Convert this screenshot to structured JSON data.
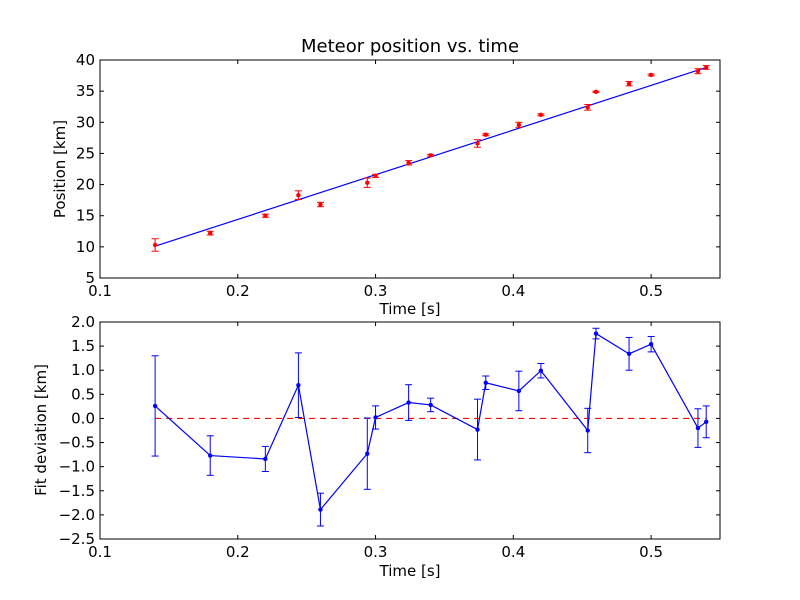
{
  "chart_data": [
    {
      "type": "scatter",
      "title": "Meteor position vs. time",
      "xlabel": "Time [s]",
      "ylabel": "Position [km]",
      "xlim": [
        0.1,
        0.55
      ],
      "ylim": [
        5,
        40
      ],
      "xticks": [
        "0.1",
        "0.2",
        "0.3",
        "0.4",
        "0.5"
      ],
      "xtick_values": [
        0.1,
        0.2,
        0.3,
        0.4,
        0.5
      ],
      "yticks": [
        "5",
        "10",
        "15",
        "20",
        "25",
        "30",
        "35",
        "40"
      ],
      "ytick_values": [
        5,
        10,
        15,
        20,
        25,
        30,
        35,
        40
      ],
      "grid": false,
      "colors": {
        "points": "#ff0000",
        "fit": "#0000ff"
      },
      "points": [
        {
          "x": 0.14,
          "y": 10.3,
          "err": 1.0
        },
        {
          "x": 0.18,
          "y": 12.2,
          "err": 0.3
        },
        {
          "x": 0.22,
          "y": 15.0,
          "err": 0.25
        },
        {
          "x": 0.244,
          "y": 18.3,
          "err": 0.7
        },
        {
          "x": 0.26,
          "y": 16.8,
          "err": 0.35
        },
        {
          "x": 0.294,
          "y": 20.3,
          "err": 0.75
        },
        {
          "x": 0.3,
          "y": 21.4,
          "err": 0.25
        },
        {
          "x": 0.324,
          "y": 23.5,
          "err": 0.35
        },
        {
          "x": 0.34,
          "y": 24.7,
          "err": 0.15
        },
        {
          "x": 0.374,
          "y": 26.6,
          "err": 0.6
        },
        {
          "x": 0.38,
          "y": 28.0,
          "err": 0.15
        },
        {
          "x": 0.404,
          "y": 29.6,
          "err": 0.4
        },
        {
          "x": 0.42,
          "y": 31.2,
          "err": 0.15
        },
        {
          "x": 0.454,
          "y": 32.4,
          "err": 0.45
        },
        {
          "x": 0.46,
          "y": 34.9,
          "err": 0.1
        },
        {
          "x": 0.484,
          "y": 36.2,
          "err": 0.35
        },
        {
          "x": 0.5,
          "y": 37.6,
          "err": 0.15
        },
        {
          "x": 0.534,
          "y": 38.2,
          "err": 0.4
        },
        {
          "x": 0.54,
          "y": 38.8,
          "err": 0.3
        }
      ],
      "fit_line": {
        "x": [
          0.14,
          0.54
        ],
        "y": [
          10.1,
          38.8
        ]
      }
    },
    {
      "type": "line",
      "xlabel": "Time [s]",
      "ylabel": "Fit deviation [km]",
      "xlim": [
        0.1,
        0.55
      ],
      "ylim": [
        -2.5,
        2.0
      ],
      "xticks": [
        "0.1",
        "0.2",
        "0.3",
        "0.4",
        "0.5"
      ],
      "xtick_values": [
        0.1,
        0.2,
        0.3,
        0.4,
        0.5
      ],
      "yticks": [
        "−2.5",
        "−2.0",
        "−1.5",
        "−1.0",
        "−0.5",
        "0.0",
        "0.5",
        "1.0",
        "1.5",
        "2.0"
      ],
      "ytick_values": [
        -2.5,
        -2.0,
        -1.5,
        -1.0,
        -0.5,
        0.0,
        0.5,
        1.0,
        1.5,
        2.0
      ],
      "grid": false,
      "colors": {
        "series": "#0000ff",
        "zero_line": "#ff0000"
      },
      "zero_line": 0.0,
      "points": [
        {
          "x": 0.14,
          "y": 0.26,
          "err": 1.04
        },
        {
          "x": 0.18,
          "y": -0.77,
          "err": 0.41
        },
        {
          "x": 0.22,
          "y": -0.84,
          "err": 0.26
        },
        {
          "x": 0.244,
          "y": 0.69,
          "err": 0.67
        },
        {
          "x": 0.26,
          "y": -1.89,
          "err": 0.34
        },
        {
          "x": 0.294,
          "y": -0.73,
          "err": 0.74
        },
        {
          "x": 0.3,
          "y": 0.02,
          "err": 0.24
        },
        {
          "x": 0.324,
          "y": 0.33,
          "err": 0.37
        },
        {
          "x": 0.34,
          "y": 0.28,
          "err": 0.14
        },
        {
          "x": 0.374,
          "y": -0.23,
          "err": 0.63
        },
        {
          "x": 0.38,
          "y": 0.74,
          "err": 0.14
        },
        {
          "x": 0.404,
          "y": 0.57,
          "err": 0.41
        },
        {
          "x": 0.42,
          "y": 0.99,
          "err": 0.15
        },
        {
          "x": 0.454,
          "y": -0.25,
          "err": 0.46
        },
        {
          "x": 0.46,
          "y": 1.76,
          "err": 0.11
        },
        {
          "x": 0.484,
          "y": 1.34,
          "err": 0.34
        },
        {
          "x": 0.5,
          "y": 1.54,
          "err": 0.16
        },
        {
          "x": 0.534,
          "y": -0.2,
          "err": 0.4
        },
        {
          "x": 0.54,
          "y": -0.07,
          "err": 0.33
        }
      ]
    }
  ]
}
